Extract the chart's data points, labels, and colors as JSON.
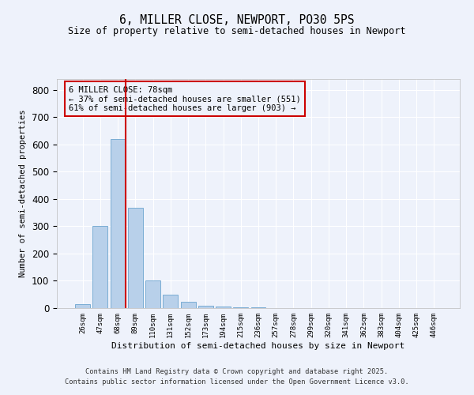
{
  "title": "6, MILLER CLOSE, NEWPORT, PO30 5PS",
  "subtitle": "Size of property relative to semi-detached houses in Newport",
  "xlabel": "Distribution of semi-detached houses by size in Newport",
  "ylabel": "Number of semi-detached properties",
  "categories": [
    "26sqm",
    "47sqm",
    "68sqm",
    "89sqm",
    "110sqm",
    "131sqm",
    "152sqm",
    "173sqm",
    "194sqm",
    "215sqm",
    "236sqm",
    "257sqm",
    "278sqm",
    "299sqm",
    "320sqm",
    "341sqm",
    "362sqm",
    "383sqm",
    "404sqm",
    "425sqm",
    "446sqm"
  ],
  "values": [
    15,
    302,
    621,
    369,
    100,
    50,
    24,
    10,
    6,
    4,
    2,
    1,
    1,
    0,
    0,
    0,
    0,
    0,
    0,
    0,
    0
  ],
  "bar_color": "#b8d0ea",
  "bar_edge_color": "#7aadd4",
  "vline_x_idx": 2,
  "vline_color": "#cc0000",
  "annotation_text": "6 MILLER CLOSE: 78sqm\n← 37% of semi-detached houses are smaller (551)\n61% of semi-detached houses are larger (903) →",
  "annotation_box_color": "#cc0000",
  "ylim": [
    0,
    840
  ],
  "yticks": [
    0,
    100,
    200,
    300,
    400,
    500,
    600,
    700,
    800
  ],
  "background_color": "#eef2fb",
  "grid_color": "#ffffff",
  "footer_line1": "Contains HM Land Registry data © Crown copyright and database right 2025.",
  "footer_line2": "Contains public sector information licensed under the Open Government Licence v3.0."
}
